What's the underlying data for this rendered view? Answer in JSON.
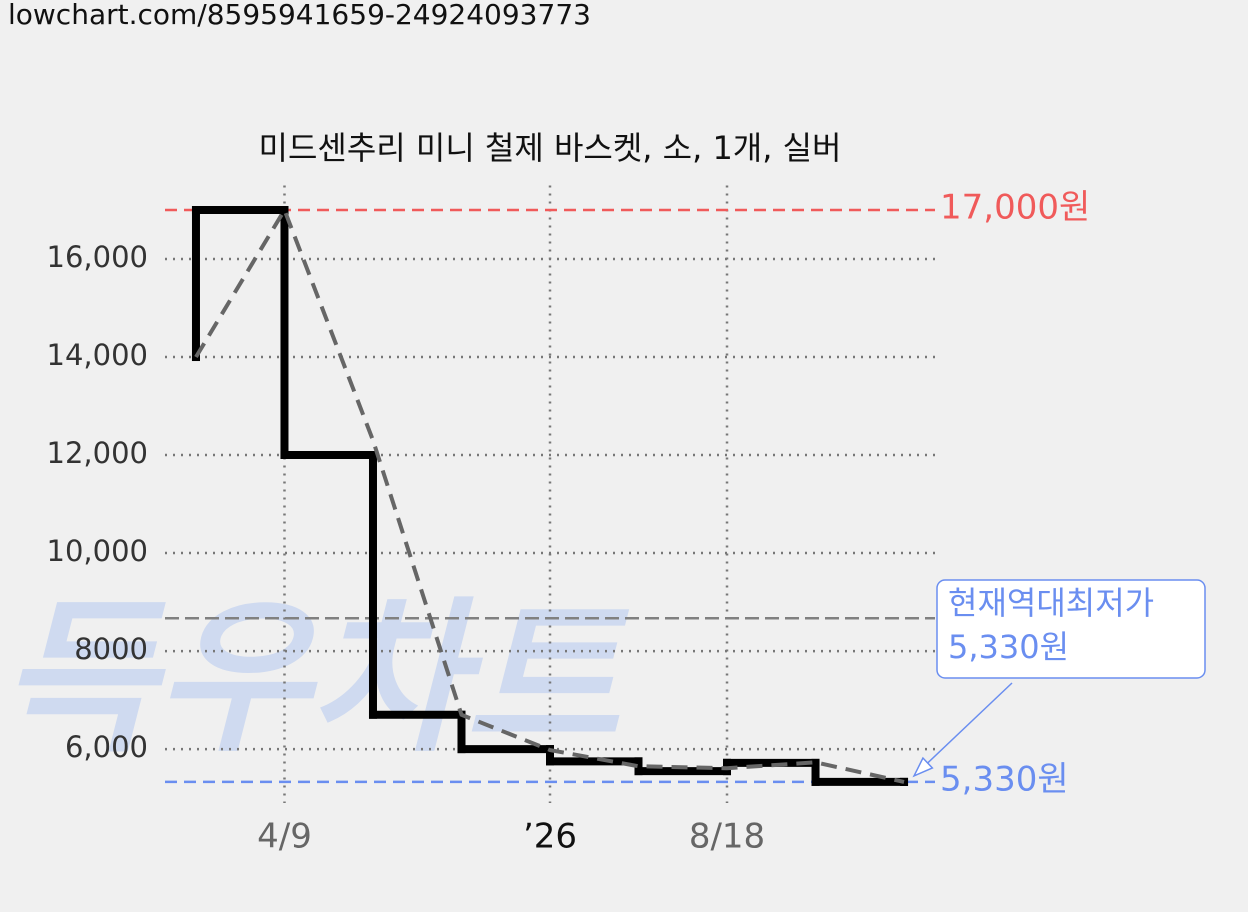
{
  "url": "lowchart.com/8595941659-24924093773",
  "chart_data": {
    "type": "line",
    "title": "미드센추리 미니 철제 바스켓, 소, 1개, 실버",
    "watermark": "득우차트",
    "series": [
      {
        "color": "#000000",
        "step": true,
        "x": [
          0,
          0,
          1,
          2,
          3,
          4,
          5,
          6,
          7,
          8
        ],
        "values": [
          14000,
          17000,
          12000,
          6700,
          6000,
          5750,
          5550,
          5720,
          5330,
          5330
        ]
      },
      {
        "color": "#666666",
        "dashed": true,
        "x": [
          0,
          1,
          2,
          3,
          4,
          5,
          6,
          7,
          8
        ],
        "values": [
          14000,
          17000,
          12300,
          6700,
          5980,
          5650,
          5610,
          5730,
          5330
        ]
      }
    ],
    "xlim": [
      -0.35,
      8.35
    ],
    "xticks": [
      {
        "value": 1,
        "label": "4/9"
      },
      {
        "value": 4,
        "label": "’26"
      },
      {
        "value": 6,
        "label": "8/18"
      }
    ],
    "ylim": [
      4900,
      17500
    ],
    "yticks": [
      {
        "value": 6000,
        "label": "6,000"
      },
      8000,
      {
        "value": 10000,
        "label": "10,000"
      },
      {
        "value": 12000,
        "label": "12,000"
      },
      {
        "value": 14000,
        "label": "14,000"
      },
      {
        "value": 16000,
        "label": "16,000"
      }
    ],
    "grid": true,
    "reference_lines": [
      {
        "value": 17000,
        "label": "17,000원",
        "color": "#f05a5a"
      },
      {
        "value": 5330,
        "label": "5,330원",
        "color": "#6a8ef0"
      },
      {
        "value": 8670,
        "color": "#808080"
      }
    ],
    "annotation": {
      "lines": [
        "현재역대최저가",
        "5,330원"
      ],
      "x": 8,
      "value": 5330,
      "color": "#6a8ef0"
    }
  }
}
